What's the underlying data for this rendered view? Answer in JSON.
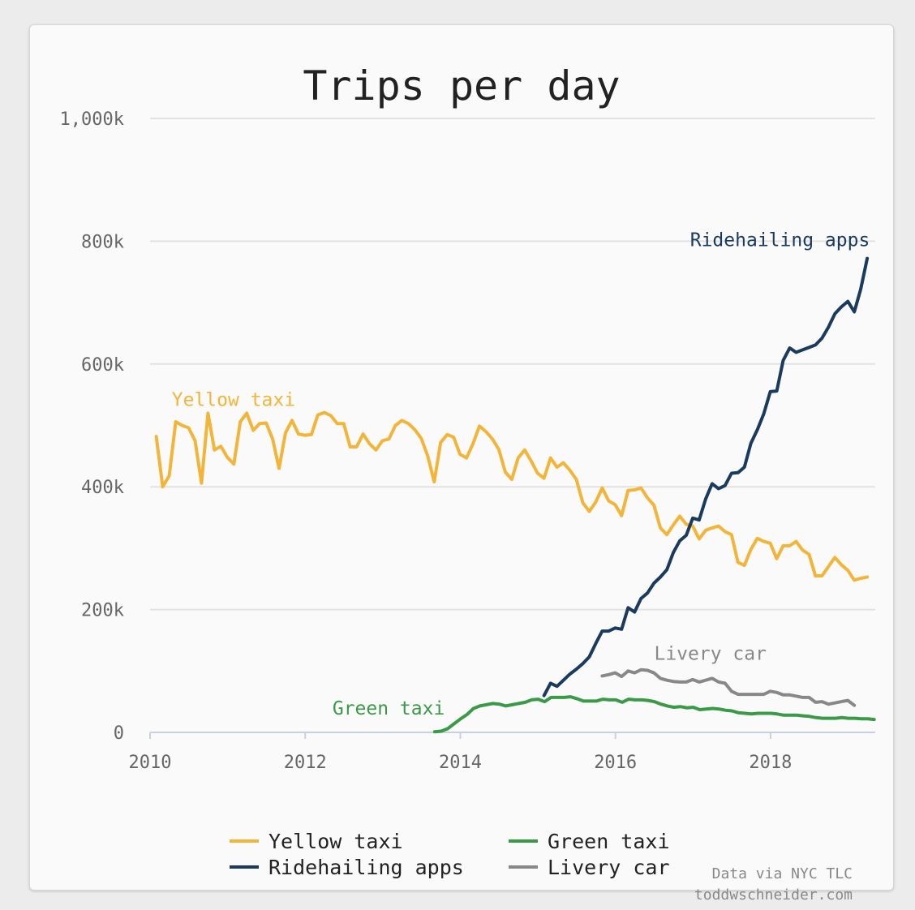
{
  "chart_data": {
    "type": "line",
    "title": "Trips per day",
    "xlabel": "",
    "ylabel": "",
    "xlim": [
      2010,
      2019.35
    ],
    "ylim": [
      0,
      1000000
    ],
    "x_ticks": [
      2010,
      2012,
      2014,
      2016,
      2018
    ],
    "y_ticks": [
      0,
      200000,
      400000,
      600000,
      800000,
      1000000
    ],
    "y_tick_labels": [
      "0",
      "200k",
      "400k",
      "600k",
      "800k",
      "1,000k"
    ],
    "grid": true,
    "legend": "bottom",
    "series": [
      {
        "name": "Yellow taxi",
        "color": "#f2b53a",
        "start": 2010.08,
        "step": 0.08333,
        "values": [
          482000,
          400000,
          418000,
          506000,
          500000,
          496000,
          475000,
          406000,
          520000,
          460000,
          466000,
          448000,
          437000,
          506000,
          520000,
          492000,
          503000,
          504000,
          478000,
          430000,
          488000,
          508000,
          486000,
          484000,
          485000,
          517000,
          521000,
          516000,
          503000,
          503000,
          465000,
          465000,
          486000,
          470000,
          460000,
          475000,
          478000,
          500000,
          508000,
          503000,
          493000,
          479000,
          450000,
          408000,
          472000,
          485000,
          481000,
          453000,
          447000,
          470000,
          499000,
          490000,
          478000,
          461000,
          424000,
          412000,
          447000,
          460000,
          442000,
          422000,
          414000,
          447000,
          432000,
          439000,
          427000,
          412000,
          374000,
          360000,
          375000,
          398000,
          377000,
          371000,
          353000,
          394000,
          395000,
          398000,
          382000,
          370000,
          333000,
          322000,
          338000,
          352000,
          339000,
          336000,
          315000,
          329000,
          333000,
          336000,
          327000,
          322000,
          277000,
          272000,
          298000,
          316000,
          311000,
          308000,
          283000,
          304000,
          304000,
          311000,
          297000,
          290000,
          255000,
          255000,
          270000,
          285000,
          273000,
          264000,
          248000,
          251000,
          253000
        ]
      },
      {
        "name": "Ridehailing apps",
        "color": "#1a3a5e",
        "start": 2015.08,
        "step": 0.08333,
        "values": [
          60000,
          80000,
          75000,
          85000,
          95000,
          103000,
          112000,
          123000,
          145000,
          165000,
          165000,
          170000,
          168000,
          203000,
          196000,
          218000,
          227000,
          243000,
          253000,
          265000,
          293000,
          312000,
          321000,
          349000,
          346000,
          380000,
          405000,
          397000,
          402000,
          422000,
          423000,
          432000,
          471000,
          493000,
          519000,
          555000,
          556000,
          606000,
          626000,
          619000,
          623000,
          627000,
          631000,
          642000,
          660000,
          682000,
          693000,
          702000,
          685000,
          722000,
          772000
        ]
      },
      {
        "name": "Green taxi",
        "color": "#3a9a48",
        "start": 2013.67,
        "step": 0.08333,
        "values": [
          1000,
          2000,
          6000,
          14000,
          22000,
          29000,
          39000,
          43000,
          45000,
          47000,
          46000,
          43000,
          45000,
          47000,
          49000,
          53000,
          54000,
          50000,
          57000,
          57000,
          57000,
          58000,
          55000,
          51000,
          51000,
          51000,
          54000,
          53000,
          53000,
          49000,
          54000,
          53000,
          53000,
          52000,
          50000,
          46000,
          43000,
          41000,
          42000,
          40000,
          41000,
          37000,
          38000,
          39000,
          38000,
          36000,
          35000,
          32000,
          31000,
          30000,
          31000,
          31000,
          31000,
          30000,
          28000,
          28000,
          28000,
          27000,
          26000,
          24000,
          23000,
          23000,
          23000,
          24000,
          23000,
          23000,
          22000,
          22000,
          21000
        ]
      },
      {
        "name": "Livery car",
        "color": "#888888",
        "start": 2015.83,
        "step": 0.08333,
        "values": [
          92000,
          94000,
          97000,
          91000,
          100000,
          97000,
          102000,
          101000,
          97000,
          88000,
          85000,
          83000,
          82000,
          82000,
          86000,
          82000,
          85000,
          88000,
          82000,
          80000,
          67000,
          62000,
          62000,
          62000,
          62000,
          62000,
          67000,
          65000,
          61000,
          61000,
          59000,
          57000,
          57000,
          49000,
          50000,
          46000,
          48000,
          50000,
          52000,
          44000
        ]
      }
    ]
  },
  "credit_line1": "Data via NYC TLC",
  "credit_line2": "toddwschneider.com"
}
